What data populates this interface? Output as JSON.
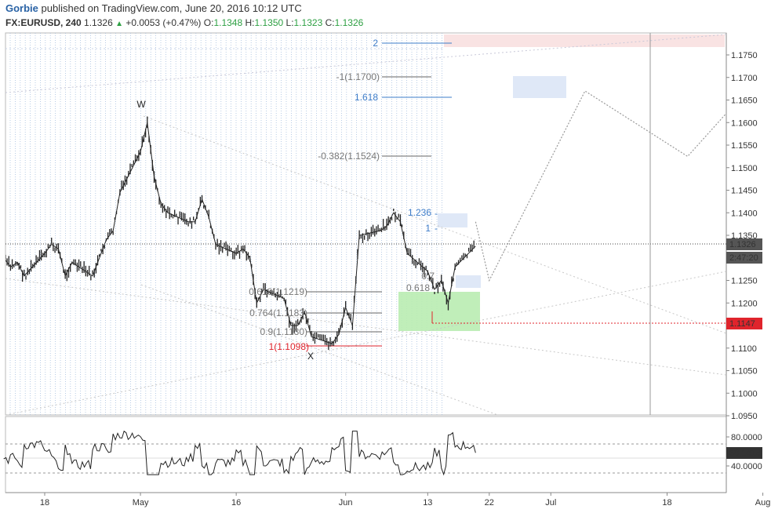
{
  "header": {
    "author": "Gorbie",
    "published": "published on TradingView.com, June 20, 2016 10:12 UTC",
    "symbol": "FX:EURUSD, 240",
    "last": "1.1326",
    "change": "+0.0053 (+0.47%)",
    "o_label": "O:",
    "o_value": "1.1348",
    "h_label": "H:",
    "h_value": "1.1350",
    "l_label": "L:",
    "l_value": "1.1323",
    "c_label": "C:",
    "c_value": "1.1326",
    "up_icon": "triangle-up-icon"
  },
  "colors": {
    "up": "#2ea043",
    "blue": "#3d7cc9",
    "red": "#e0242c",
    "fib_gray": "#555555",
    "candle": "#222222",
    "last_box": "#555555",
    "red_box": "#e0242c",
    "grid_dot": "#a7c0e0"
  },
  "chart_data": {
    "type": "candlestick",
    "symbol": "FX:EURUSD",
    "interval": "240",
    "x_ticks": [
      "18",
      "May",
      "16",
      "Jun",
      "13",
      "22",
      "Jul",
      "18",
      "Aug"
    ],
    "y_ticks": [
      "1.1750",
      "1.1700",
      "1.1650",
      "1.1600",
      "1.1550",
      "1.1500",
      "1.1450",
      "1.1400",
      "1.1350",
      "1.1300",
      "1.1250",
      "1.1200",
      "1.1150",
      "1.1100",
      "1.1050",
      "1.1000",
      "1.0950"
    ],
    "ylim": [
      1.0935,
      1.1795
    ],
    "last_price": "1.1326",
    "countdown": "2:47:20",
    "level_line": "1.1147",
    "price_path": [
      [
        "Apr 12",
        1.13
      ],
      [
        "Apr 13",
        1.128
      ],
      [
        "Apr 14",
        1.129
      ],
      [
        "Apr 15",
        1.126
      ],
      [
        "Apr 18",
        1.131
      ],
      [
        "Apr 19",
        1.133
      ],
      [
        "Apr 20",
        1.132
      ],
      [
        "Apr 21",
        1.126
      ],
      [
        "Apr 22",
        1.129
      ],
      [
        "Apr 25",
        1.126
      ],
      [
        "Apr 26",
        1.13
      ],
      [
        "Apr 27",
        1.134
      ],
      [
        "Apr 28",
        1.136
      ],
      [
        "Apr 29",
        1.1445
      ],
      [
        "May 2",
        1.1535
      ],
      [
        "May 3",
        1.16
      ],
      [
        "May 4",
        1.148
      ],
      [
        "May 5",
        1.142
      ],
      [
        "May 6",
        1.14
      ],
      [
        "May 9",
        1.138
      ],
      [
        "May 10",
        1.138
      ],
      [
        "May 11",
        1.143
      ],
      [
        "May 12",
        1.139
      ],
      [
        "May 13",
        1.133
      ],
      [
        "May 16",
        1.131
      ],
      [
        "May 17",
        1.132
      ],
      [
        "May 18",
        1.13
      ],
      [
        "May 19",
        1.12
      ],
      [
        "May 20",
        1.123
      ],
      [
        "May 23",
        1.121
      ],
      [
        "May 24",
        1.115
      ],
      [
        "May 25",
        1.115
      ],
      [
        "May 26",
        1.118
      ],
      [
        "May 27",
        1.1125
      ],
      [
        "May 30",
        1.111
      ],
      [
        "May 31",
        1.113
      ],
      [
        "Jun 1",
        1.119
      ],
      [
        "Jun 2",
        1.115
      ],
      [
        "Jun 3",
        1.135
      ],
      [
        "Jun 6",
        1.136
      ],
      [
        "Jun 7",
        1.137
      ],
      [
        "Jun 8",
        1.14
      ],
      [
        "Jun 9",
        1.138
      ],
      [
        "Jun 10",
        1.131
      ],
      [
        "Jun 13",
        1.127
      ],
      [
        "Jun 14",
        1.123
      ],
      [
        "Jun 15",
        1.125
      ],
      [
        "Jun 16",
        1.12
      ],
      [
        "Jun 17",
        1.128
      ],
      [
        "Jun 20",
        1.1326
      ]
    ],
    "rsi": {
      "levels": [
        "80.0000",
        "40.0000"
      ],
      "value": "58.1414"
    },
    "wave_labels": [
      "W",
      "X"
    ],
    "fib_labels": {
      "ext_2": "2",
      "ext_neg1": "-1(1.1700)",
      "ext_1618": "1.618",
      "ext_neg0382": "-0.382(1.1524)",
      "ext_1236": "1.236",
      "ext_1": "1",
      "ret_0618": "0.618(1.1219)",
      "ret_0764": "0.764(1.1183)",
      "ret_09": "0.9(1.1130)",
      "ret_1": "1(1.1098)",
      "small_07": "0.7",
      "small_0618": "0.618"
    },
    "projection_path": [
      [
        "Jun 20",
        1.138
      ],
      [
        "Jun 22",
        1.125
      ],
      [
        "Jul 6",
        1.167
      ],
      [
        "Jul 21",
        1.1525
      ],
      [
        "Aug 6",
        1.1795
      ]
    ]
  }
}
